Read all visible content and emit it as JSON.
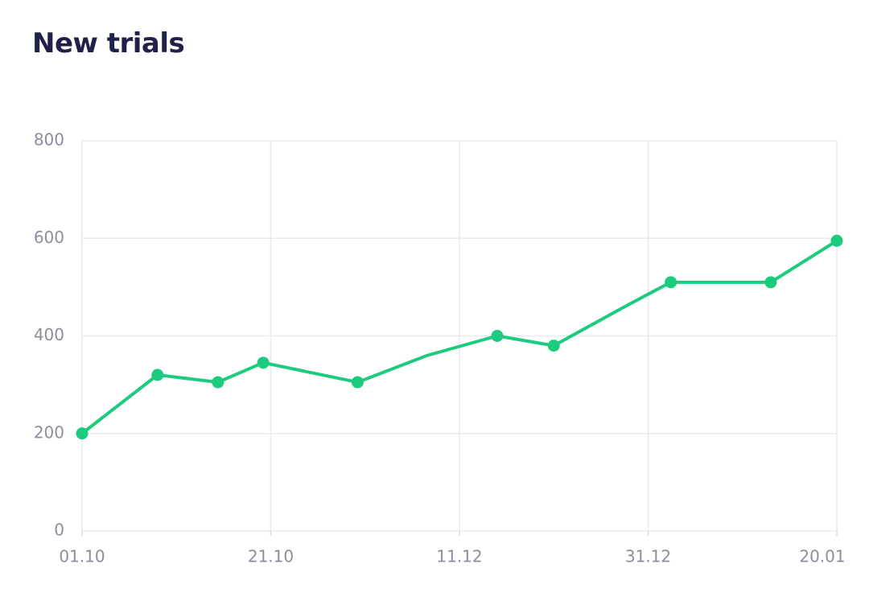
{
  "chart_data": {
    "type": "line",
    "title": "New trials",
    "xlabel": "",
    "ylabel": "",
    "x_tick_labels": [
      "01.10",
      "21.10",
      "11.12",
      "31.12",
      "20.01"
    ],
    "y_tick_labels": [
      "0",
      "200",
      "400",
      "600",
      "800"
    ],
    "y_ticks": [
      0,
      200,
      400,
      600,
      800
    ],
    "ylim": [
      0,
      800
    ],
    "grid": true,
    "line_color": "#1dcb7f",
    "series": [
      {
        "x_index": [
          0,
          0.4,
          0.72,
          0.96,
          1.46,
          1.83,
          2.2,
          2.5,
          2.9,
          3.12,
          3.65,
          4.0
        ],
        "markers": [
          true,
          true,
          true,
          true,
          true,
          false,
          true,
          true,
          false,
          true,
          true,
          true
        ],
        "values": [
          200,
          320,
          305,
          345,
          305,
          360,
          400,
          380,
          465,
          510,
          510,
          595
        ]
      }
    ]
  }
}
